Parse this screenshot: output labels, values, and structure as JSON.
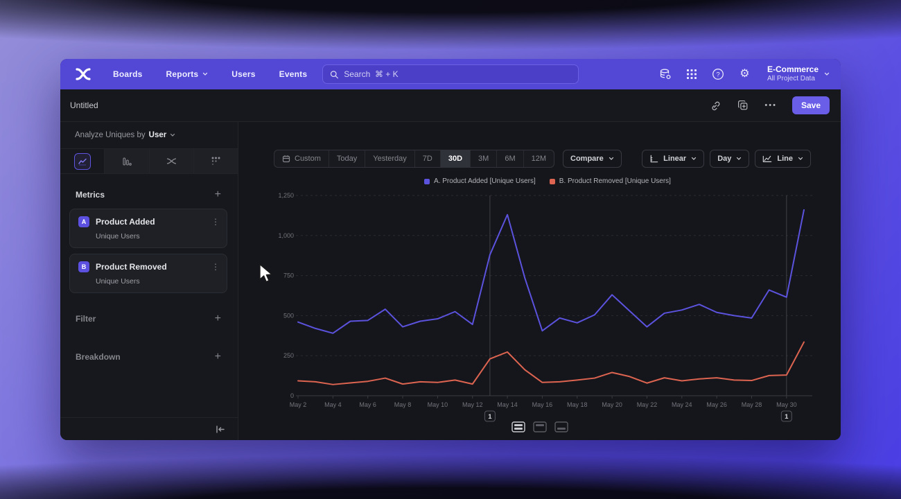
{
  "nav": {
    "items": [
      {
        "label": "Boards"
      },
      {
        "label": "Reports"
      },
      {
        "label": "Users"
      },
      {
        "label": "Events"
      }
    ],
    "search_placeholder": "Search  ⌘ + K",
    "project": {
      "name": "E-Commerce",
      "scope": "All Project Data"
    }
  },
  "toolbar": {
    "title": "Untitled",
    "save_label": "Save"
  },
  "glyphs": {
    "plus": "+",
    "kebab": "⋮",
    "ellipsis": "•••",
    "gear": "⚙",
    "help": "?"
  },
  "sidebar": {
    "analyze_prefix": "Analyze Uniques by",
    "analyze_value": "User",
    "metrics_header": "Metrics",
    "metrics": [
      {
        "badge": "A",
        "name": "Product Added",
        "subtitle": "Unique Users"
      },
      {
        "badge": "B",
        "name": "Product Removed",
        "subtitle": "Unique Users"
      }
    ],
    "filter_label": "Filter",
    "breakdown_label": "Breakdown"
  },
  "controls": {
    "ranges": [
      "Custom",
      "Today",
      "Yesterday",
      "7D",
      "30D",
      "3M",
      "6M",
      "12M"
    ],
    "active_range": "30D",
    "compare_label": "Compare",
    "scale_label": "Linear",
    "granularity_label": "Day",
    "chart_type_label": "Line"
  },
  "chart_data": {
    "type": "line",
    "title": "",
    "xlabel": "",
    "ylabel": "",
    "ylim": [
      0,
      1250
    ],
    "yticks": [
      0,
      250,
      500,
      750,
      1000,
      1250
    ],
    "grid": "horizontal-dashed",
    "legend_position": "top-center",
    "x": [
      "May 2",
      "May 3",
      "May 4",
      "May 5",
      "May 6",
      "May 7",
      "May 8",
      "May 9",
      "May 10",
      "May 11",
      "May 12",
      "May 13",
      "May 14",
      "May 15",
      "May 16",
      "May 17",
      "May 18",
      "May 19",
      "May 20",
      "May 21",
      "May 22",
      "May 23",
      "May 24",
      "May 25",
      "May 26",
      "May 27",
      "May 28",
      "May 29",
      "May 30",
      "May 31"
    ],
    "xtick_labels": [
      "May 2",
      "May 4",
      "May 6",
      "May 8",
      "May 10",
      "May 12",
      "May 14",
      "May 16",
      "May 18",
      "May 20",
      "May 22",
      "May 24",
      "May 26",
      "May 28",
      "May 30"
    ],
    "series": [
      {
        "name": "A. Product Added [Unique Users]",
        "color": "#5b52de",
        "values": [
          460,
          420,
          390,
          465,
          470,
          540,
          430,
          465,
          480,
          525,
          445,
          880,
          1130,
          735,
          405,
          485,
          455,
          505,
          630,
          530,
          430,
          515,
          535,
          570,
          520,
          500,
          485,
          660,
          615,
          1160
        ]
      },
      {
        "name": "B. Product Removed [Unique Users]",
        "color": "#dd6450",
        "values": [
          93,
          87,
          70,
          80,
          90,
          110,
          73,
          87,
          83,
          98,
          73,
          230,
          273,
          162,
          83,
          87,
          98,
          110,
          145,
          120,
          79,
          112,
          93,
          105,
          112,
          98,
          95,
          126,
          129,
          335
        ]
      }
    ],
    "annotations": [
      {
        "x": "May 13",
        "label": "1"
      },
      {
        "x": "May 30",
        "label": "1"
      }
    ]
  }
}
